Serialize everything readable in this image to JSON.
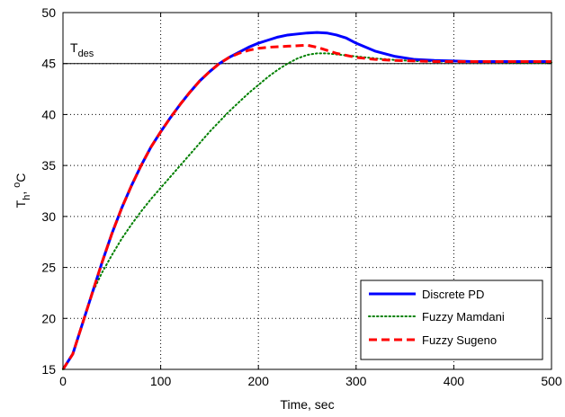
{
  "chart_data": {
    "type": "line",
    "xlabel": "Time, sec",
    "ylabel_main": "T",
    "ylabel_sub": "h",
    "ylabel_unit_sup": "o",
    "ylabel_unit": "C",
    "xlim": [
      0,
      500
    ],
    "ylim": [
      15,
      50
    ],
    "xticks": [
      0,
      100,
      200,
      300,
      400,
      500
    ],
    "yticks": [
      15,
      20,
      25,
      30,
      35,
      40,
      45,
      50
    ],
    "grid": true,
    "legend_position": "bottom-right",
    "reference_line": {
      "label_main": "T",
      "label_sub": "des",
      "value": 45,
      "color": "#000000"
    },
    "series": [
      {
        "name": "Discrete PD",
        "color": "#0000ff",
        "style": "solid",
        "x": [
          0,
          10,
          20,
          30,
          40,
          50,
          60,
          70,
          80,
          90,
          100,
          110,
          120,
          130,
          140,
          150,
          160,
          170,
          180,
          190,
          200,
          210,
          220,
          230,
          240,
          250,
          260,
          270,
          280,
          290,
          300,
          320,
          340,
          360,
          380,
          400,
          420,
          440,
          460,
          480,
          500
        ],
        "y": [
          15,
          16.5,
          19.5,
          22.5,
          25.5,
          28.3,
          30.8,
          33.0,
          35.0,
          36.8,
          38.3,
          39.7,
          41.0,
          42.2,
          43.3,
          44.2,
          45.0,
          45.6,
          46.1,
          46.6,
          47.0,
          47.3,
          47.6,
          47.8,
          47.9,
          48.0,
          48.05,
          48.0,
          47.8,
          47.5,
          47.0,
          46.2,
          45.7,
          45.4,
          45.3,
          45.25,
          45.2,
          45.2,
          45.2,
          45.2,
          45.2
        ]
      },
      {
        "name": "Fuzzy Mamdani",
        "color": "#008000",
        "style": "dotted",
        "x": [
          0,
          10,
          20,
          30,
          40,
          50,
          60,
          70,
          80,
          90,
          100,
          110,
          120,
          130,
          140,
          150,
          160,
          170,
          180,
          190,
          200,
          210,
          220,
          230,
          240,
          250,
          260,
          270,
          280,
          300,
          320,
          340,
          360,
          380,
          400,
          420,
          440,
          460,
          480,
          500
        ],
        "y": [
          15,
          16.5,
          19.5,
          22.5,
          24.5,
          26.2,
          27.8,
          29.2,
          30.5,
          31.7,
          32.8,
          33.9,
          35.0,
          36.1,
          37.2,
          38.3,
          39.3,
          40.3,
          41.2,
          42.1,
          42.9,
          43.7,
          44.4,
          45.0,
          45.5,
          45.85,
          46.0,
          46.0,
          45.9,
          45.7,
          45.5,
          45.35,
          45.25,
          45.2,
          45.2,
          45.2,
          45.15,
          45.1,
          45.1,
          45.1
        ]
      },
      {
        "name": "Fuzzy Sugeno",
        "color": "#ff0000",
        "style": "dashed",
        "x": [
          0,
          10,
          20,
          30,
          40,
          50,
          60,
          70,
          80,
          90,
          100,
          110,
          120,
          130,
          140,
          150,
          160,
          170,
          180,
          190,
          200,
          210,
          220,
          230,
          240,
          250,
          260,
          270,
          280,
          300,
          320,
          340,
          360,
          380,
          400,
          420,
          440,
          460,
          480,
          500
        ],
        "y": [
          15,
          16.5,
          19.5,
          22.5,
          25.5,
          28.3,
          30.8,
          33.0,
          35.0,
          36.8,
          38.3,
          39.7,
          41.0,
          42.2,
          43.3,
          44.2,
          45.0,
          45.6,
          46.0,
          46.3,
          46.5,
          46.6,
          46.65,
          46.7,
          46.75,
          46.8,
          46.6,
          46.3,
          46.0,
          45.6,
          45.4,
          45.3,
          45.25,
          45.2,
          45.2,
          45.2,
          45.2,
          45.2,
          45.2,
          45.2
        ]
      }
    ]
  }
}
